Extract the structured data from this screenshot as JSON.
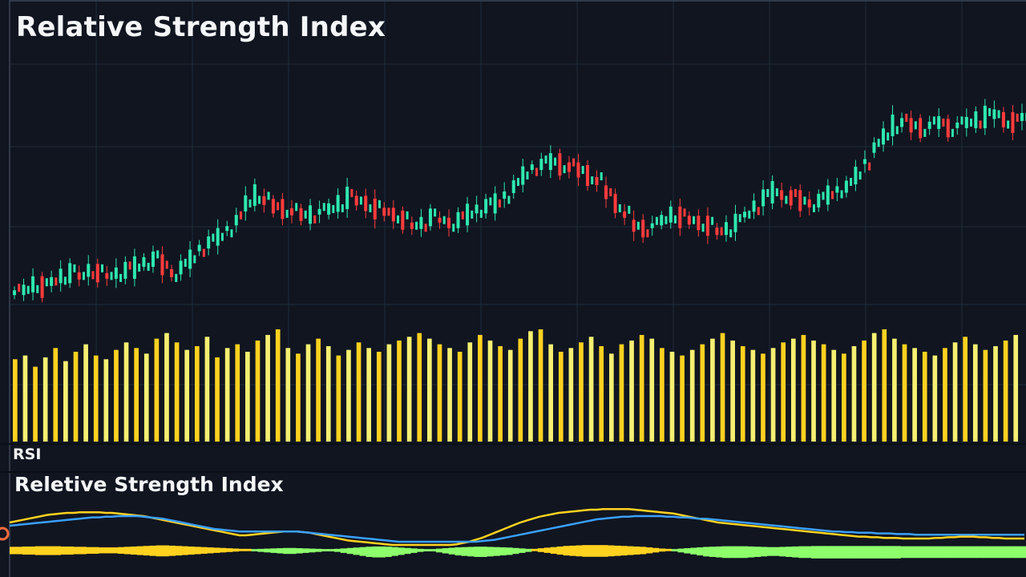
{
  "chart_data": [
    {
      "type": "candlestick",
      "title": "Relative Strength Index",
      "price_range": [
        0,
        100
      ],
      "volume_range": [
        0,
        100
      ],
      "colors": {
        "up": "#2ee8b0",
        "down": "#ff3b3b",
        "volume_a": "#ffd21f",
        "volume_b": "#f5f071",
        "grid": "#263142",
        "background": "#101520"
      },
      "series": [
        {
          "name": "price",
          "points": [
            [
              0,
              10
            ],
            [
              3,
              11
            ],
            [
              6,
              13
            ],
            [
              9,
              12
            ],
            [
              12,
              14
            ],
            [
              15,
              16
            ],
            [
              18,
              17
            ],
            [
              21,
              16
            ],
            [
              24,
              18
            ],
            [
              27,
              17
            ],
            [
              30,
              16
            ],
            [
              33,
              17
            ],
            [
              36,
              18
            ],
            [
              39,
              19
            ],
            [
              42,
              21
            ],
            [
              45,
              22
            ],
            [
              48,
              20
            ],
            [
              51,
              17
            ],
            [
              54,
              19
            ],
            [
              57,
              22
            ],
            [
              60,
              26
            ],
            [
              63,
              28
            ],
            [
              66,
              30
            ],
            [
              69,
              33
            ],
            [
              72,
              36
            ],
            [
              75,
              42
            ],
            [
              78,
              45
            ],
            [
              81,
              43
            ],
            [
              84,
              41
            ],
            [
              87,
              40
            ],
            [
              90,
              39
            ],
            [
              93,
              38
            ],
            [
              96,
              38
            ],
            [
              99,
              39
            ],
            [
              102,
              40
            ],
            [
              105,
              42
            ],
            [
              108,
              44
            ],
            [
              111,
              43
            ],
            [
              114,
              42
            ],
            [
              117,
              40
            ],
            [
              120,
              39
            ],
            [
              123,
              38
            ],
            [
              126,
              36
            ],
            [
              129,
              34
            ],
            [
              132,
              35
            ],
            [
              135,
              37
            ],
            [
              138,
              36
            ],
            [
              141,
              35
            ],
            [
              144,
              36
            ],
            [
              147,
              38
            ],
            [
              150,
              40
            ],
            [
              153,
              41
            ],
            [
              156,
              42
            ],
            [
              159,
              45
            ],
            [
              162,
              48
            ],
            [
              165,
              52
            ],
            [
              168,
              55
            ],
            [
              171,
              56
            ],
            [
              174,
              57
            ],
            [
              177,
              56
            ],
            [
              180,
              55
            ],
            [
              183,
              54
            ],
            [
              186,
              52
            ],
            [
              189,
              50
            ],
            [
              192,
              46
            ],
            [
              195,
              42
            ],
            [
              198,
              38
            ],
            [
              201,
              34
            ],
            [
              204,
              33
            ],
            [
              207,
              34
            ],
            [
              210,
              36
            ],
            [
              213,
              38
            ],
            [
              216,
              37
            ],
            [
              219,
              36
            ],
            [
              222,
              35
            ],
            [
              225,
              34
            ],
            [
              228,
              32
            ],
            [
              231,
              33
            ],
            [
              234,
              35
            ],
            [
              237,
              38
            ],
            [
              240,
              41
            ],
            [
              243,
              44
            ],
            [
              246,
              46
            ],
            [
              249,
              45
            ],
            [
              252,
              44
            ],
            [
              255,
              43
            ],
            [
              258,
              42
            ],
            [
              261,
              43
            ],
            [
              264,
              45
            ],
            [
              267,
              47
            ],
            [
              270,
              48
            ],
            [
              273,
              52
            ],
            [
              276,
              57
            ],
            [
              279,
              62
            ],
            [
              282,
              66
            ],
            [
              285,
              70
            ],
            [
              288,
              71
            ],
            [
              291,
              70
            ],
            [
              294,
              69
            ],
            [
              297,
              70
            ],
            [
              300,
              71
            ],
            [
              303,
              69
            ],
            [
              306,
              70
            ],
            [
              309,
              71
            ],
            [
              312,
              72
            ],
            [
              315,
              73
            ],
            [
              318,
              74
            ],
            [
              321,
              72
            ],
            [
              324,
              71
            ],
            [
              327,
              73
            ]
          ]
        },
        {
          "name": "volume",
          "values": [
            44,
            46,
            40,
            45,
            50,
            43,
            48,
            52,
            46,
            44,
            49,
            53,
            50,
            47,
            55,
            58,
            53,
            49,
            51,
            56,
            45,
            50,
            52,
            48,
            54,
            57,
            60,
            50,
            47,
            52,
            55,
            51,
            46,
            49,
            53,
            50,
            48,
            52,
            54,
            56,
            58,
            55,
            52,
            50,
            48,
            53,
            57,
            54,
            51,
            49,
            55,
            59,
            60,
            52,
            48,
            50,
            53,
            56,
            51,
            47,
            52,
            54,
            57,
            55,
            50,
            48,
            46,
            49,
            52,
            55,
            58,
            54,
            51,
            49,
            47,
            50,
            53,
            55,
            57,
            54,
            52,
            49,
            47,
            51,
            54,
            58,
            60,
            55,
            52,
            50,
            48,
            46,
            50,
            53,
            56,
            52,
            49,
            51,
            54,
            57
          ]
        }
      ]
    },
    {
      "type": "line",
      "title": "Reletive Strength Index",
      "label": "RSI",
      "x": [
        0,
        1,
        2,
        3,
        4,
        5,
        6,
        7,
        8,
        9,
        10,
        11,
        12,
        13,
        14,
        15,
        16,
        17,
        18,
        19,
        20,
        21,
        22,
        23,
        24,
        25,
        26,
        27,
        28,
        29,
        30,
        31,
        32,
        33,
        34,
        35,
        36,
        37,
        38,
        39,
        40,
        41,
        42,
        43,
        44,
        45,
        46,
        47,
        48,
        49,
        50,
        51,
        52,
        53,
        54,
        55,
        56,
        57,
        58,
        59,
        60,
        61,
        62,
        63,
        64,
        65,
        66,
        67,
        68,
        69,
        70,
        71,
        72,
        73,
        74,
        75,
        76,
        77,
        78,
        79,
        80,
        81,
        82,
        83,
        84,
        85,
        86,
        87,
        88,
        89,
        90,
        91,
        92,
        93,
        94,
        95,
        96,
        97,
        98,
        99,
        100,
        101,
        102,
        103,
        104,
        105,
        106,
        107,
        108,
        109,
        110,
        111,
        112,
        113,
        114,
        115,
        116,
        117,
        118,
        119,
        120,
        121,
        122,
        123,
        124,
        125,
        126,
        127,
        128,
        129,
        130,
        131,
        132,
        133,
        134,
        135,
        136,
        137,
        138,
        139,
        140,
        141,
        142,
        143,
        144,
        145,
        146,
        147,
        148,
        149,
        150,
        151,
        152,
        153,
        154,
        155,
        156,
        157,
        158,
        159
      ],
      "ylim": [
        0,
        100
      ],
      "series": [
        {
          "color": "#ffd21f",
          "values": [
            60,
            62,
            64,
            66,
            68,
            70,
            72,
            73,
            74,
            75,
            75,
            76,
            76,
            76,
            76,
            75,
            75,
            74,
            73,
            72,
            71,
            70,
            68,
            66,
            64,
            62,
            60,
            58,
            56,
            54,
            52,
            50,
            48,
            46,
            44,
            42,
            40,
            40,
            41,
            42,
            43,
            44,
            45,
            46,
            46,
            46,
            45,
            44,
            42,
            40,
            38,
            36,
            34,
            32,
            31,
            30,
            29,
            28,
            27,
            26,
            25,
            25,
            25,
            25,
            25,
            25,
            25,
            25,
            25,
            25,
            26,
            28,
            30,
            33,
            36,
            40,
            44,
            48,
            52,
            56,
            60,
            63,
            66,
            69,
            71,
            73,
            75,
            76,
            77,
            78,
            79,
            80,
            80,
            81,
            81,
            81,
            81,
            81,
            80,
            79,
            78,
            77,
            76,
            75,
            74,
            72,
            70,
            68,
            66,
            64,
            62,
            60,
            59,
            58,
            57,
            56,
            55,
            54,
            53,
            52,
            51,
            50,
            49,
            48,
            47,
            46,
            45,
            44,
            43,
            42,
            41,
            40,
            39,
            38,
            38,
            37,
            37,
            36,
            36,
            36,
            35,
            35,
            35,
            35,
            35,
            36,
            36,
            37,
            37,
            38,
            38,
            38,
            37,
            37,
            36,
            36,
            35,
            35,
            35,
            35
          ]
        },
        {
          "color": "#3aa0ff",
          "values": [
            55,
            56,
            57,
            58,
            59,
            60,
            61,
            62,
            63,
            64,
            65,
            66,
            67,
            68,
            68,
            69,
            69,
            70,
            70,
            70,
            70,
            69,
            68,
            67,
            66,
            64,
            62,
            60,
            58,
            56,
            54,
            52,
            50,
            49,
            48,
            47,
            46,
            46,
            46,
            46,
            46,
            46,
            46,
            46,
            46,
            46,
            45,
            44,
            43,
            42,
            41,
            40,
            39,
            38,
            37,
            36,
            35,
            34,
            33,
            32,
            31,
            30,
            30,
            30,
            30,
            30,
            30,
            30,
            30,
            30,
            30,
            30,
            30,
            30,
            31,
            32,
            33,
            35,
            37,
            39,
            41,
            43,
            45,
            47,
            49,
            51,
            53,
            55,
            57,
            59,
            61,
            63,
            65,
            66,
            67,
            68,
            69,
            69,
            70,
            70,
            70,
            70,
            70,
            69,
            69,
            68,
            68,
            67,
            66,
            66,
            65,
            64,
            63,
            62,
            61,
            60,
            59,
            58,
            57,
            56,
            55,
            54,
            53,
            52,
            51,
            50,
            49,
            48,
            47,
            46,
            46,
            45,
            45,
            44,
            44,
            44,
            43,
            43,
            43,
            42,
            42,
            42,
            41,
            41,
            41,
            41,
            41,
            41,
            41,
            41,
            41,
            41,
            41,
            41,
            41,
            41,
            41,
            41,
            41,
            41
          ]
        }
      ],
      "histogram": [
        8,
        8,
        9,
        9,
        10,
        10,
        10,
        10,
        9,
        9,
        8,
        8,
        7,
        7,
        6,
        6,
        6,
        7,
        8,
        9,
        10,
        11,
        12,
        13,
        13,
        12,
        11,
        10,
        9,
        8,
        7,
        6,
        5,
        4,
        3,
        2,
        1,
        1,
        -1,
        -2,
        -3,
        -4,
        -5,
        -6,
        -6,
        -5,
        -4,
        -3,
        -2,
        -1,
        -1,
        -2,
        -4,
        -6,
        -8,
        -10,
        -12,
        -13,
        -13,
        -12,
        -10,
        -8,
        -6,
        -4,
        -2,
        -1,
        -1,
        -3,
        -5,
        -7,
        -9,
        -10,
        -11,
        -12,
        -12,
        -11,
        -10,
        -9,
        -8,
        -6,
        -4,
        -2,
        1,
        3,
        5,
        7,
        9,
        11,
        12,
        13,
        14,
        14,
        14,
        14,
        13,
        12,
        11,
        10,
        9,
        8,
        6,
        4,
        2,
        1,
        -1,
        -3,
        -5,
        -7,
        -9,
        -11,
        -12,
        -13,
        -14,
        -14,
        -14,
        -14,
        -13,
        -12,
        -11,
        -10,
        -10,
        -11,
        -12,
        -13,
        -14,
        -14,
        -15,
        -15,
        -15,
        -15,
        -15,
        -15,
        -15,
        -15,
        -15,
        -15,
        -15,
        -15,
        -15,
        -15,
        -14,
        -14,
        -14,
        -14,
        -14,
        -14,
        -14,
        -14,
        -14,
        -14,
        -14,
        -14,
        -14,
        -14,
        -14,
        -14,
        -14,
        -14,
        -14,
        -14
      ],
      "colors": {
        "positive": "#ffd21f",
        "negative": "#8dff6b"
      }
    }
  ]
}
